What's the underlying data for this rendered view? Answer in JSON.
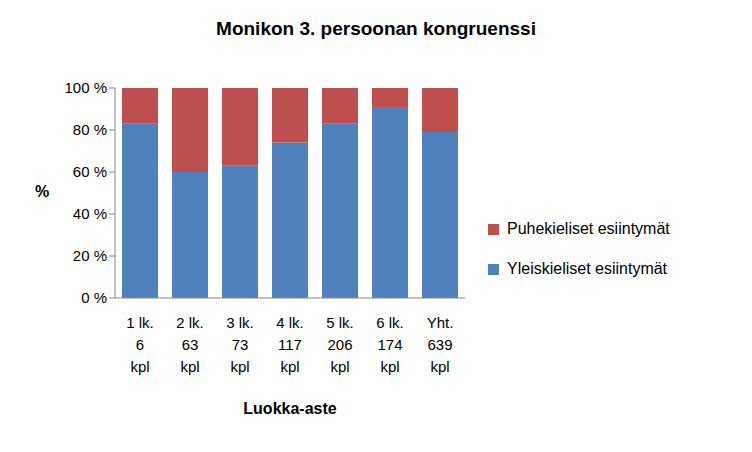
{
  "chart_data": {
    "type": "bar",
    "title": "Monikon 3. persoonan kongruenssi",
    "x_label": "Luokka-aste",
    "y_label": "%",
    "categories": [
      "1 lk.\n6\nkpl",
      "2 lk.\n63\nkpl",
      "3 lk.\n73\nkpl",
      "4 lk.\n117\nkpl",
      "5 lk.\n206\nkpl",
      "6 lk.\n174\nkpl",
      "Yht.\n639\nkpl"
    ],
    "series": [
      {
        "name": "Yleiskieliset esiintymät",
        "color": "#4f81bd",
        "values": [
          83,
          60,
          63,
          74,
          83,
          91,
          79
        ]
      },
      {
        "name": "Puhekieliset esiintymät",
        "color": "#c0504d",
        "values": [
          17,
          40,
          37,
          26,
          17,
          9,
          21
        ]
      }
    ],
    "stacked": true,
    "ylim": [
      0,
      100
    ],
    "yticks": [
      {
        "value": 0,
        "label": "0 %"
      },
      {
        "value": 20,
        "label": "20 %"
      },
      {
        "value": 40,
        "label": "40 %"
      },
      {
        "value": 60,
        "label": "60 %"
      },
      {
        "value": 80,
        "label": "80 %"
      },
      {
        "value": 100,
        "label": "100 %"
      }
    ],
    "grid": false,
    "legend": "right"
  }
}
